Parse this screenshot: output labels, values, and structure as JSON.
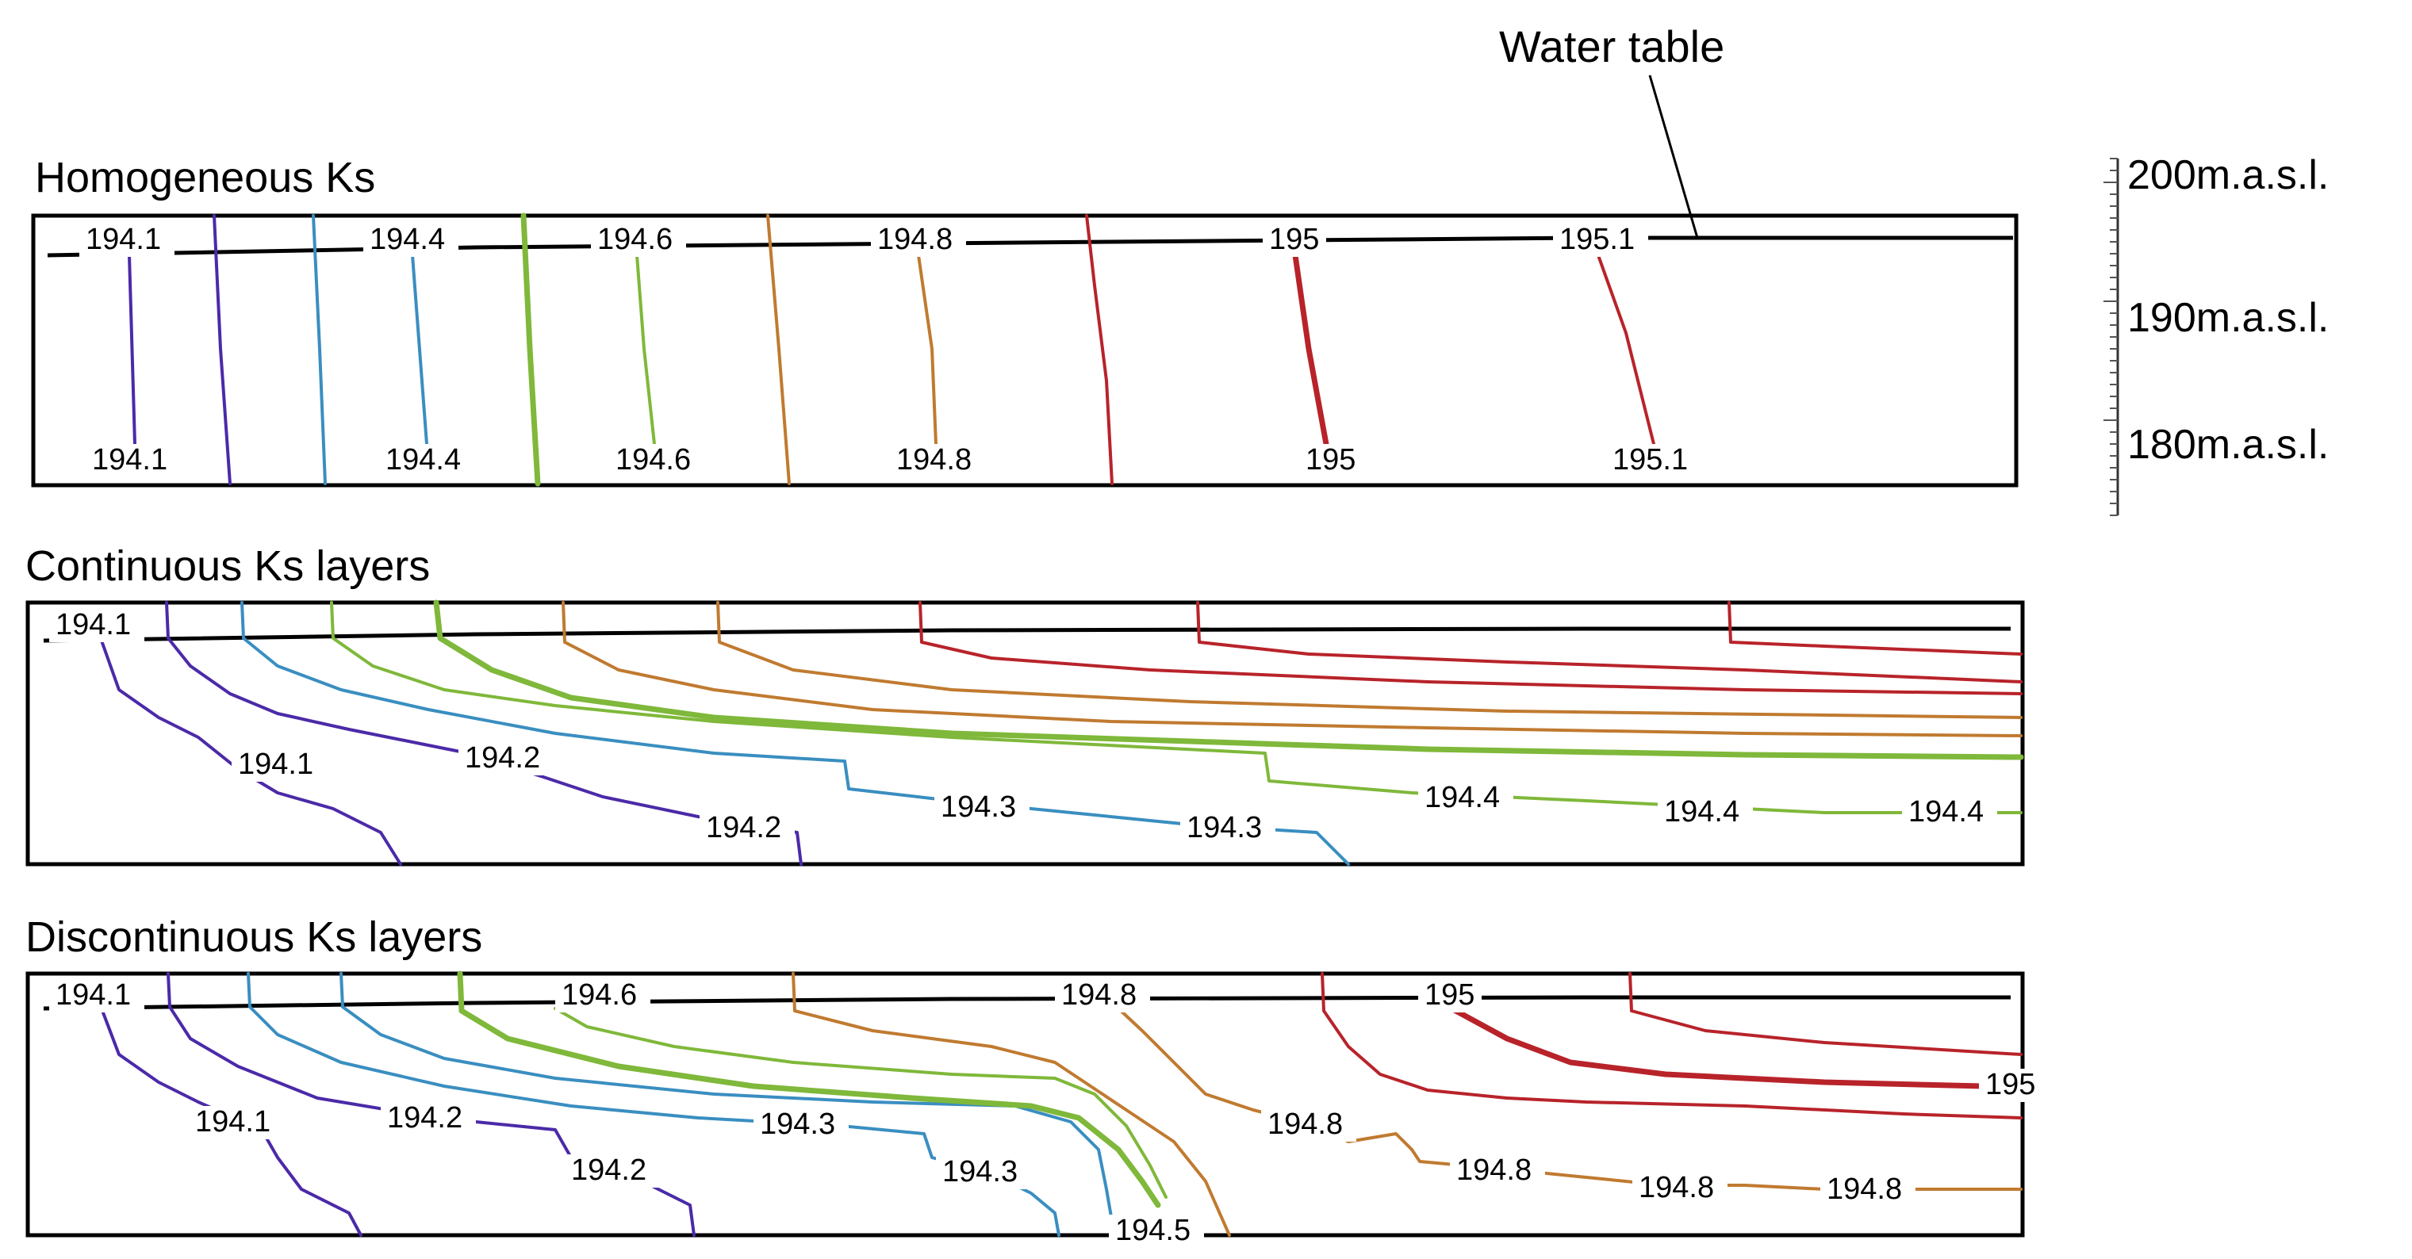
{
  "annotation": {
    "water_table_label": "Water table"
  },
  "scale": {
    "labels": [
      "200m.a.s.l.",
      "190m.a.s.l.",
      "180m.a.s.l."
    ]
  },
  "panels": [
    {
      "title": "Homogeneous Ks",
      "labels": [
        "194.1",
        "194.4",
        "194.6",
        "194.8",
        "195",
        "195.1",
        "194.1",
        "194.4",
        "194.6",
        "194.8",
        "195",
        "195.1"
      ]
    },
    {
      "title": "Continuous Ks layers",
      "labels": [
        "194.1",
        "194.1",
        "194.2",
        "194.2",
        "194.3",
        "194.3",
        "194.4",
        "194.4",
        "194.4"
      ]
    },
    {
      "title": "Discontinuous Ks layers",
      "labels": [
        "194.1",
        "194.6",
        "194.8",
        "195",
        "195",
        "194.1",
        "194.2",
        "194.2",
        "194.3",
        "194.3",
        "194.5",
        "194.8",
        "194.8",
        "194.8",
        "194.8"
      ]
    }
  ],
  "colors": {
    "c1": "#4b2aa8",
    "c2": "#3a8ec0",
    "c3": "#7fb83a",
    "c4": "#c07a30",
    "c5": "#b8232a",
    "frame": "#000000"
  }
}
